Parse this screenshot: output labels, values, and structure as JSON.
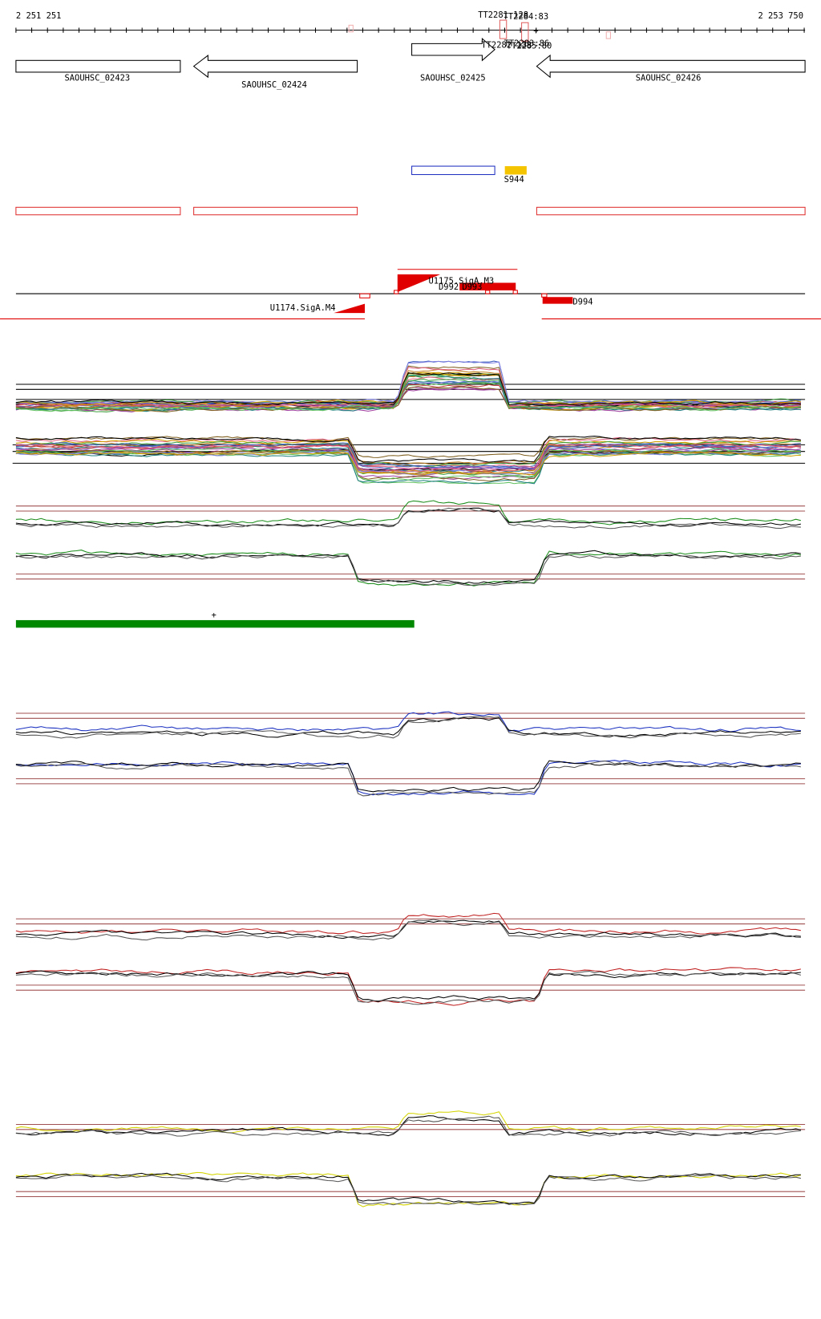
{
  "ruler": {
    "start": "2 251 251",
    "end": "2 253 750"
  },
  "terminators": [
    {
      "label": "TT2281:128"
    },
    {
      "label": "TT2284:83"
    },
    {
      "label": "TT2282:133"
    },
    {
      "label": "TT2283:86"
    },
    {
      "label": "TT2285:80"
    }
  ],
  "genes": [
    {
      "label": "SAOUHSC_02423"
    },
    {
      "label": "SAOUHSC_02424"
    },
    {
      "label": "SAOUHSC_02425"
    },
    {
      "label": "SAOUHSC_02426"
    }
  ],
  "segments": [
    {
      "label": "S944"
    }
  ],
  "promoters": [
    {
      "label": "U1175.SigA.M3"
    },
    {
      "label": "U1174.SigA.M4"
    }
  ],
  "deletions": [
    {
      "label": "D992"
    },
    {
      "label": "D993"
    },
    {
      "label": "D994"
    }
  ],
  "markers": [
    "+",
    "+"
  ]
}
